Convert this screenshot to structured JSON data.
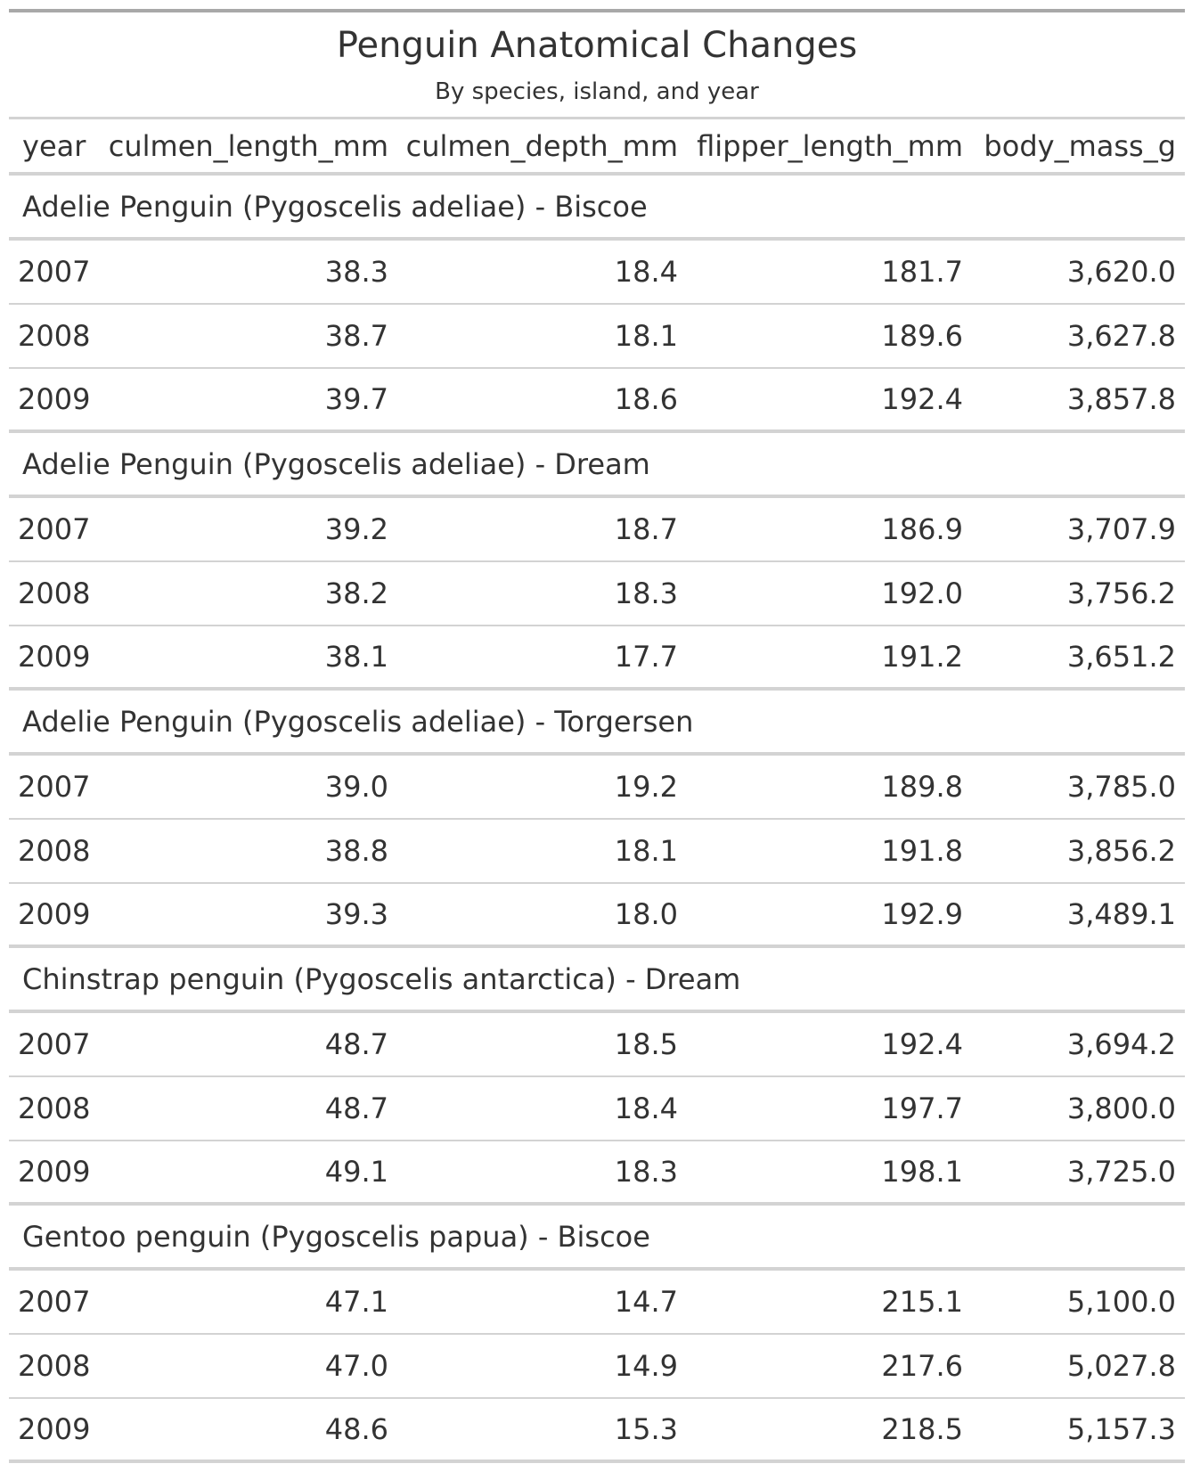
{
  "title": "Penguin Anatomical Changes",
  "subtitle": "By species, island, and year",
  "columns": [
    "year",
    "culmen_length_mm",
    "culmen_depth_mm",
    "flipper_length_mm",
    "body_mass_g"
  ],
  "groups": [
    {
      "label": "Adelie Penguin (Pygoscelis adeliae) - Biscoe",
      "rows": [
        [
          "2007",
          "38.3",
          "18.4",
          "181.7",
          "3,620.0"
        ],
        [
          "2008",
          "38.7",
          "18.1",
          "189.6",
          "3,627.8"
        ],
        [
          "2009",
          "39.7",
          "18.6",
          "192.4",
          "3,857.8"
        ]
      ]
    },
    {
      "label": "Adelie Penguin (Pygoscelis adeliae) - Dream",
      "rows": [
        [
          "2007",
          "39.2",
          "18.7",
          "186.9",
          "3,707.9"
        ],
        [
          "2008",
          "38.2",
          "18.3",
          "192.0",
          "3,756.2"
        ],
        [
          "2009",
          "38.1",
          "17.7",
          "191.2",
          "3,651.2"
        ]
      ]
    },
    {
      "label": "Adelie Penguin (Pygoscelis adeliae) - Torgersen",
      "rows": [
        [
          "2007",
          "39.0",
          "19.2",
          "189.8",
          "3,785.0"
        ],
        [
          "2008",
          "38.8",
          "18.1",
          "191.8",
          "3,856.2"
        ],
        [
          "2009",
          "39.3",
          "18.0",
          "192.9",
          "3,489.1"
        ]
      ]
    },
    {
      "label": "Chinstrap penguin (Pygoscelis antarctica) - Dream",
      "rows": [
        [
          "2007",
          "48.7",
          "18.5",
          "192.4",
          "3,694.2"
        ],
        [
          "2008",
          "48.7",
          "18.4",
          "197.7",
          "3,800.0"
        ],
        [
          "2009",
          "49.1",
          "18.3",
          "198.1",
          "3,725.0"
        ]
      ]
    },
    {
      "label": "Gentoo penguin (Pygoscelis papua) - Biscoe",
      "rows": [
        [
          "2007",
          "47.1",
          "14.7",
          "215.1",
          "5,100.0"
        ],
        [
          "2008",
          "47.0",
          "14.9",
          "217.6",
          "5,027.8"
        ],
        [
          "2009",
          "48.6",
          "15.3",
          "218.5",
          "5,157.3"
        ]
      ]
    }
  ]
}
